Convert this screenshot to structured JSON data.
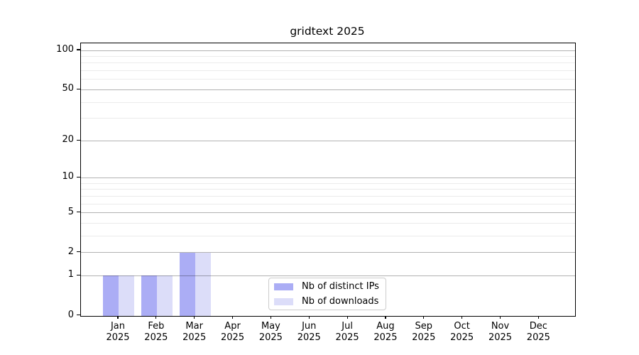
{
  "chart_data": {
    "type": "bar",
    "title": "gridtext 2025",
    "year": "2025",
    "months": [
      "Jan",
      "Feb",
      "Mar",
      "Apr",
      "May",
      "Jun",
      "Jul",
      "Aug",
      "Sep",
      "Oct",
      "Nov",
      "Dec"
    ],
    "series": [
      {
        "name": "Nb of distinct IPs",
        "color": "#abadf5",
        "values": [
          1,
          1,
          2,
          0,
          0,
          0,
          0,
          0,
          0,
          0,
          0,
          0
        ]
      },
      {
        "name": "Nb of downloads",
        "color": "#dcddf9",
        "values": [
          1,
          1,
          2,
          0,
          0,
          0,
          0,
          0,
          0,
          0,
          0,
          0
        ]
      }
    ],
    "y_axis": {
      "scale": "log1p",
      "major_ticks": [
        0,
        1,
        2,
        5,
        10,
        20,
        50,
        100
      ],
      "minor_gridlines": [
        3,
        4,
        6,
        7,
        8,
        9,
        30,
        40,
        60,
        70,
        80,
        90
      ],
      "ylim": [
        0,
        113
      ]
    },
    "x_axis": {
      "tick_label_lines": 2
    },
    "legend": {
      "position": "lower center"
    },
    "grid": true,
    "colors": {
      "major_grid": "#b0b0b0",
      "minor_grid": "#ebebeb",
      "spine": "#000000",
      "background": "#ffffff"
    }
  }
}
